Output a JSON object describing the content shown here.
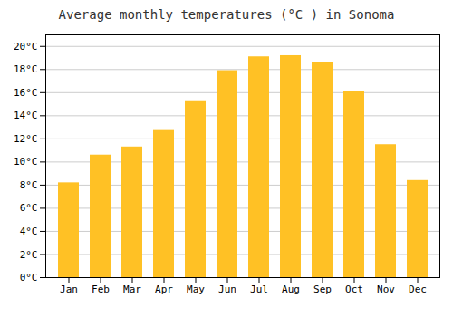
{
  "chart_data": {
    "type": "bar",
    "title": "Average monthly temperatures (°C ) in Sonoma",
    "categories": [
      "Jan",
      "Feb",
      "Mar",
      "Apr",
      "May",
      "Jun",
      "Jul",
      "Aug",
      "Sep",
      "Oct",
      "Nov",
      "Dec"
    ],
    "values": [
      8.2,
      10.6,
      11.3,
      12.8,
      15.3,
      17.9,
      19.1,
      19.2,
      18.6,
      16.1,
      11.5,
      8.4
    ],
    "color": "#FFC125",
    "ylim": [
      0,
      21
    ],
    "yticks": [
      {
        "value": 0,
        "label": "0°C"
      },
      {
        "value": 2,
        "label": "2°C"
      },
      {
        "value": 4,
        "label": "4°C"
      },
      {
        "value": 6,
        "label": "6°C"
      },
      {
        "value": 8,
        "label": "8°C"
      },
      {
        "value": 10,
        "label": "10°C"
      },
      {
        "value": 12,
        "label": "12°C"
      },
      {
        "value": 14,
        "label": "14°C"
      },
      {
        "value": 16,
        "label": "16°C"
      },
      {
        "value": 18,
        "label": "18°C"
      },
      {
        "value": 20,
        "label": "20°C"
      }
    ],
    "grid": true
  }
}
